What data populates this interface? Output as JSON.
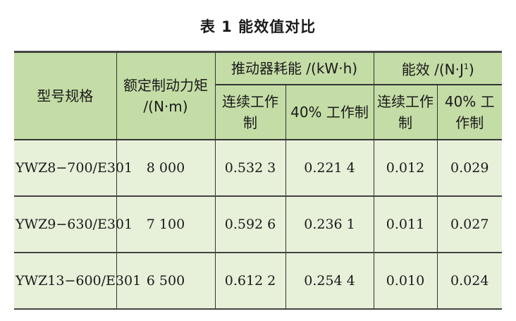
{
  "title": "表 1  能效值对比",
  "header": {
    "model": "型号规格",
    "torque": "额定制动力矩 /(N·m)",
    "energy_group": "推动器耗能 /(kW·h)",
    "efficiency_group": "能效 /(N·J",
    "efficiency_sup": "1",
    "efficiency_close": ")",
    "continuous": "连续工作制",
    "pct40": "40% 工作制"
  },
  "rows": [
    {
      "model": "YWZ8−700/E301",
      "torque": "8 000",
      "energy_cont": "0.532 3",
      "energy_40": "0.221 4",
      "eff_cont": "0.012",
      "eff_40": "0.029"
    },
    {
      "model": "YWZ9−630/E301",
      "torque": "7 100",
      "energy_cont": "0.592 6",
      "energy_40": "0.236 1",
      "eff_cont": "0.011",
      "eff_40": "0.027"
    },
    {
      "model": "YWZ13−600/E301",
      "torque": "6 500",
      "energy_cont": "0.612 2",
      "energy_40": "0.254 4",
      "eff_cont": "0.010",
      "eff_40": "0.024"
    }
  ]
}
